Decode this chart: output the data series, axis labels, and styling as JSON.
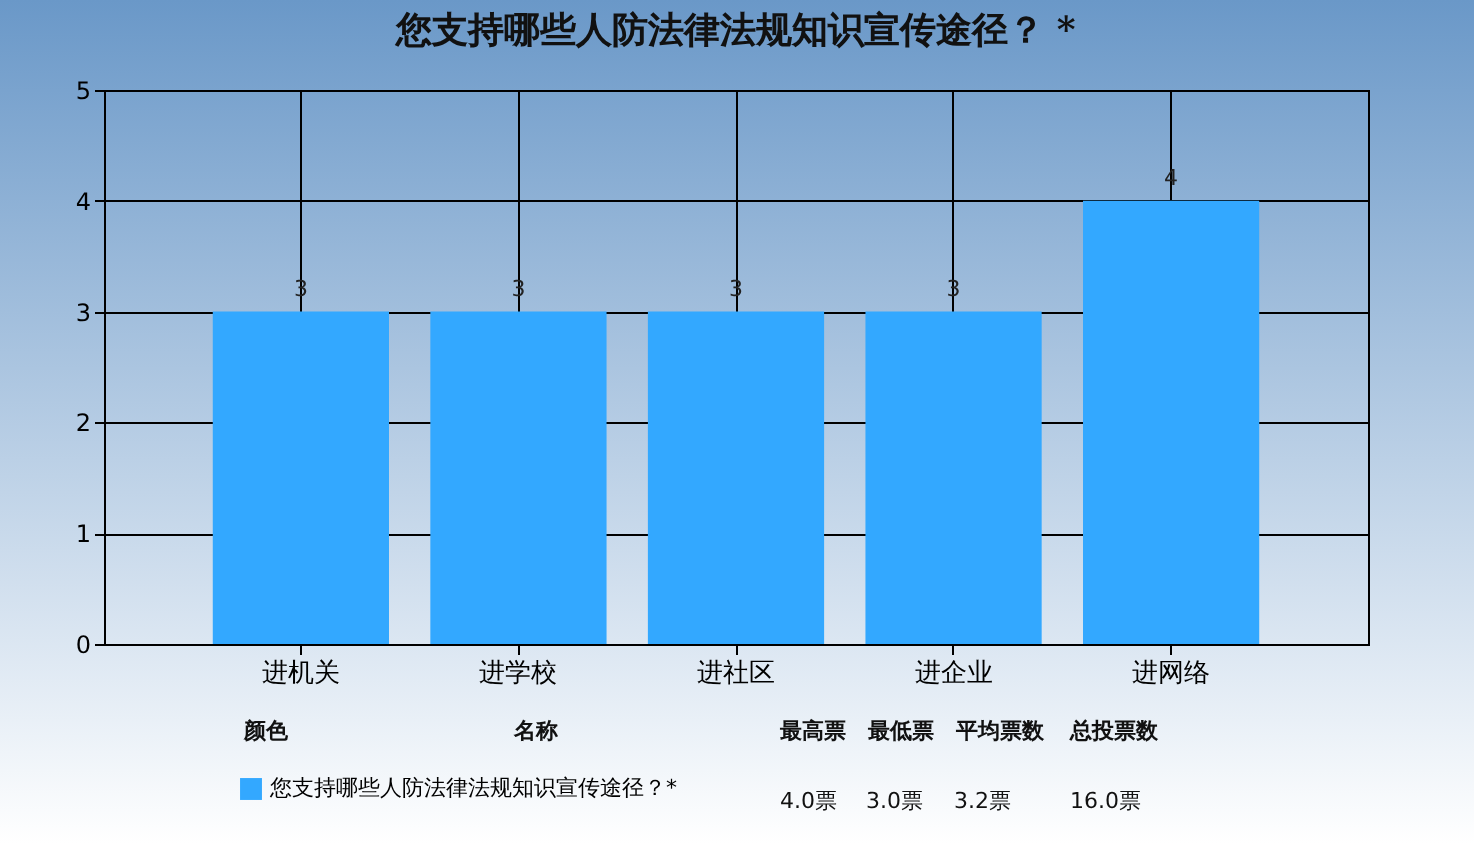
{
  "chart_data": {
    "type": "bar",
    "title": "您支持哪些人防法律法规知识宣传途径？ *",
    "categories": [
      "进机关",
      "进学校",
      "进社区",
      "进企业",
      "进网络"
    ],
    "series": [
      {
        "name": "您支持哪些人防法律法规知识宣传途径？*",
        "color": "#33a8ff",
        "values": [
          3,
          3,
          3,
          3,
          4
        ]
      }
    ],
    "ylim": [
      0,
      5
    ],
    "yticks": [
      0,
      1,
      2,
      3,
      4,
      5
    ],
    "grid": true,
    "data_labels": true,
    "legend": "bottom left",
    "annotations": [
      "颜色",
      "名称",
      "最高票",
      "最低票",
      "平均票数",
      "总投票数",
      "4.0票",
      "3.0票",
      "3.2票",
      "16.0票"
    ]
  }
}
